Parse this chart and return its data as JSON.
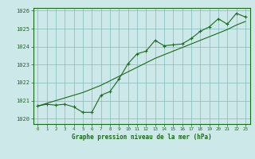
{
  "x": [
    0,
    1,
    2,
    3,
    4,
    5,
    6,
    7,
    8,
    9,
    10,
    11,
    12,
    13,
    14,
    15,
    16,
    17,
    18,
    19,
    20,
    21,
    22,
    23
  ],
  "y_line": [
    1020.7,
    1020.8,
    1020.75,
    1020.8,
    1020.65,
    1020.35,
    1020.35,
    1021.3,
    1021.5,
    1022.2,
    1023.05,
    1023.6,
    1023.75,
    1024.35,
    1024.05,
    1024.1,
    1024.15,
    1024.45,
    1024.85,
    1025.1,
    1025.55,
    1025.25,
    1025.85,
    1025.65
  ],
  "y_smooth": [
    1020.7,
    1020.85,
    1021.0,
    1021.15,
    1021.3,
    1021.45,
    1021.65,
    1021.85,
    1022.1,
    1022.35,
    1022.6,
    1022.85,
    1023.1,
    1023.35,
    1023.55,
    1023.75,
    1023.95,
    1024.15,
    1024.35,
    1024.55,
    1024.75,
    1024.95,
    1025.2,
    1025.4
  ],
  "line_color": "#1a6b1a",
  "bg_color": "#cce8e8",
  "grid_color": "#7fbbbb",
  "label_color": "#1a6b1a",
  "xlabel": "Graphe pression niveau de la mer (hPa)",
  "ylim": [
    1019.7,
    1026.15
  ],
  "xlim": [
    -0.5,
    23.5
  ],
  "yticks": [
    1020,
    1021,
    1022,
    1023,
    1024,
    1025,
    1026
  ],
  "xticks": [
    0,
    1,
    2,
    3,
    4,
    5,
    6,
    7,
    8,
    9,
    10,
    11,
    12,
    13,
    14,
    15,
    16,
    17,
    18,
    19,
    20,
    21,
    22,
    23
  ]
}
